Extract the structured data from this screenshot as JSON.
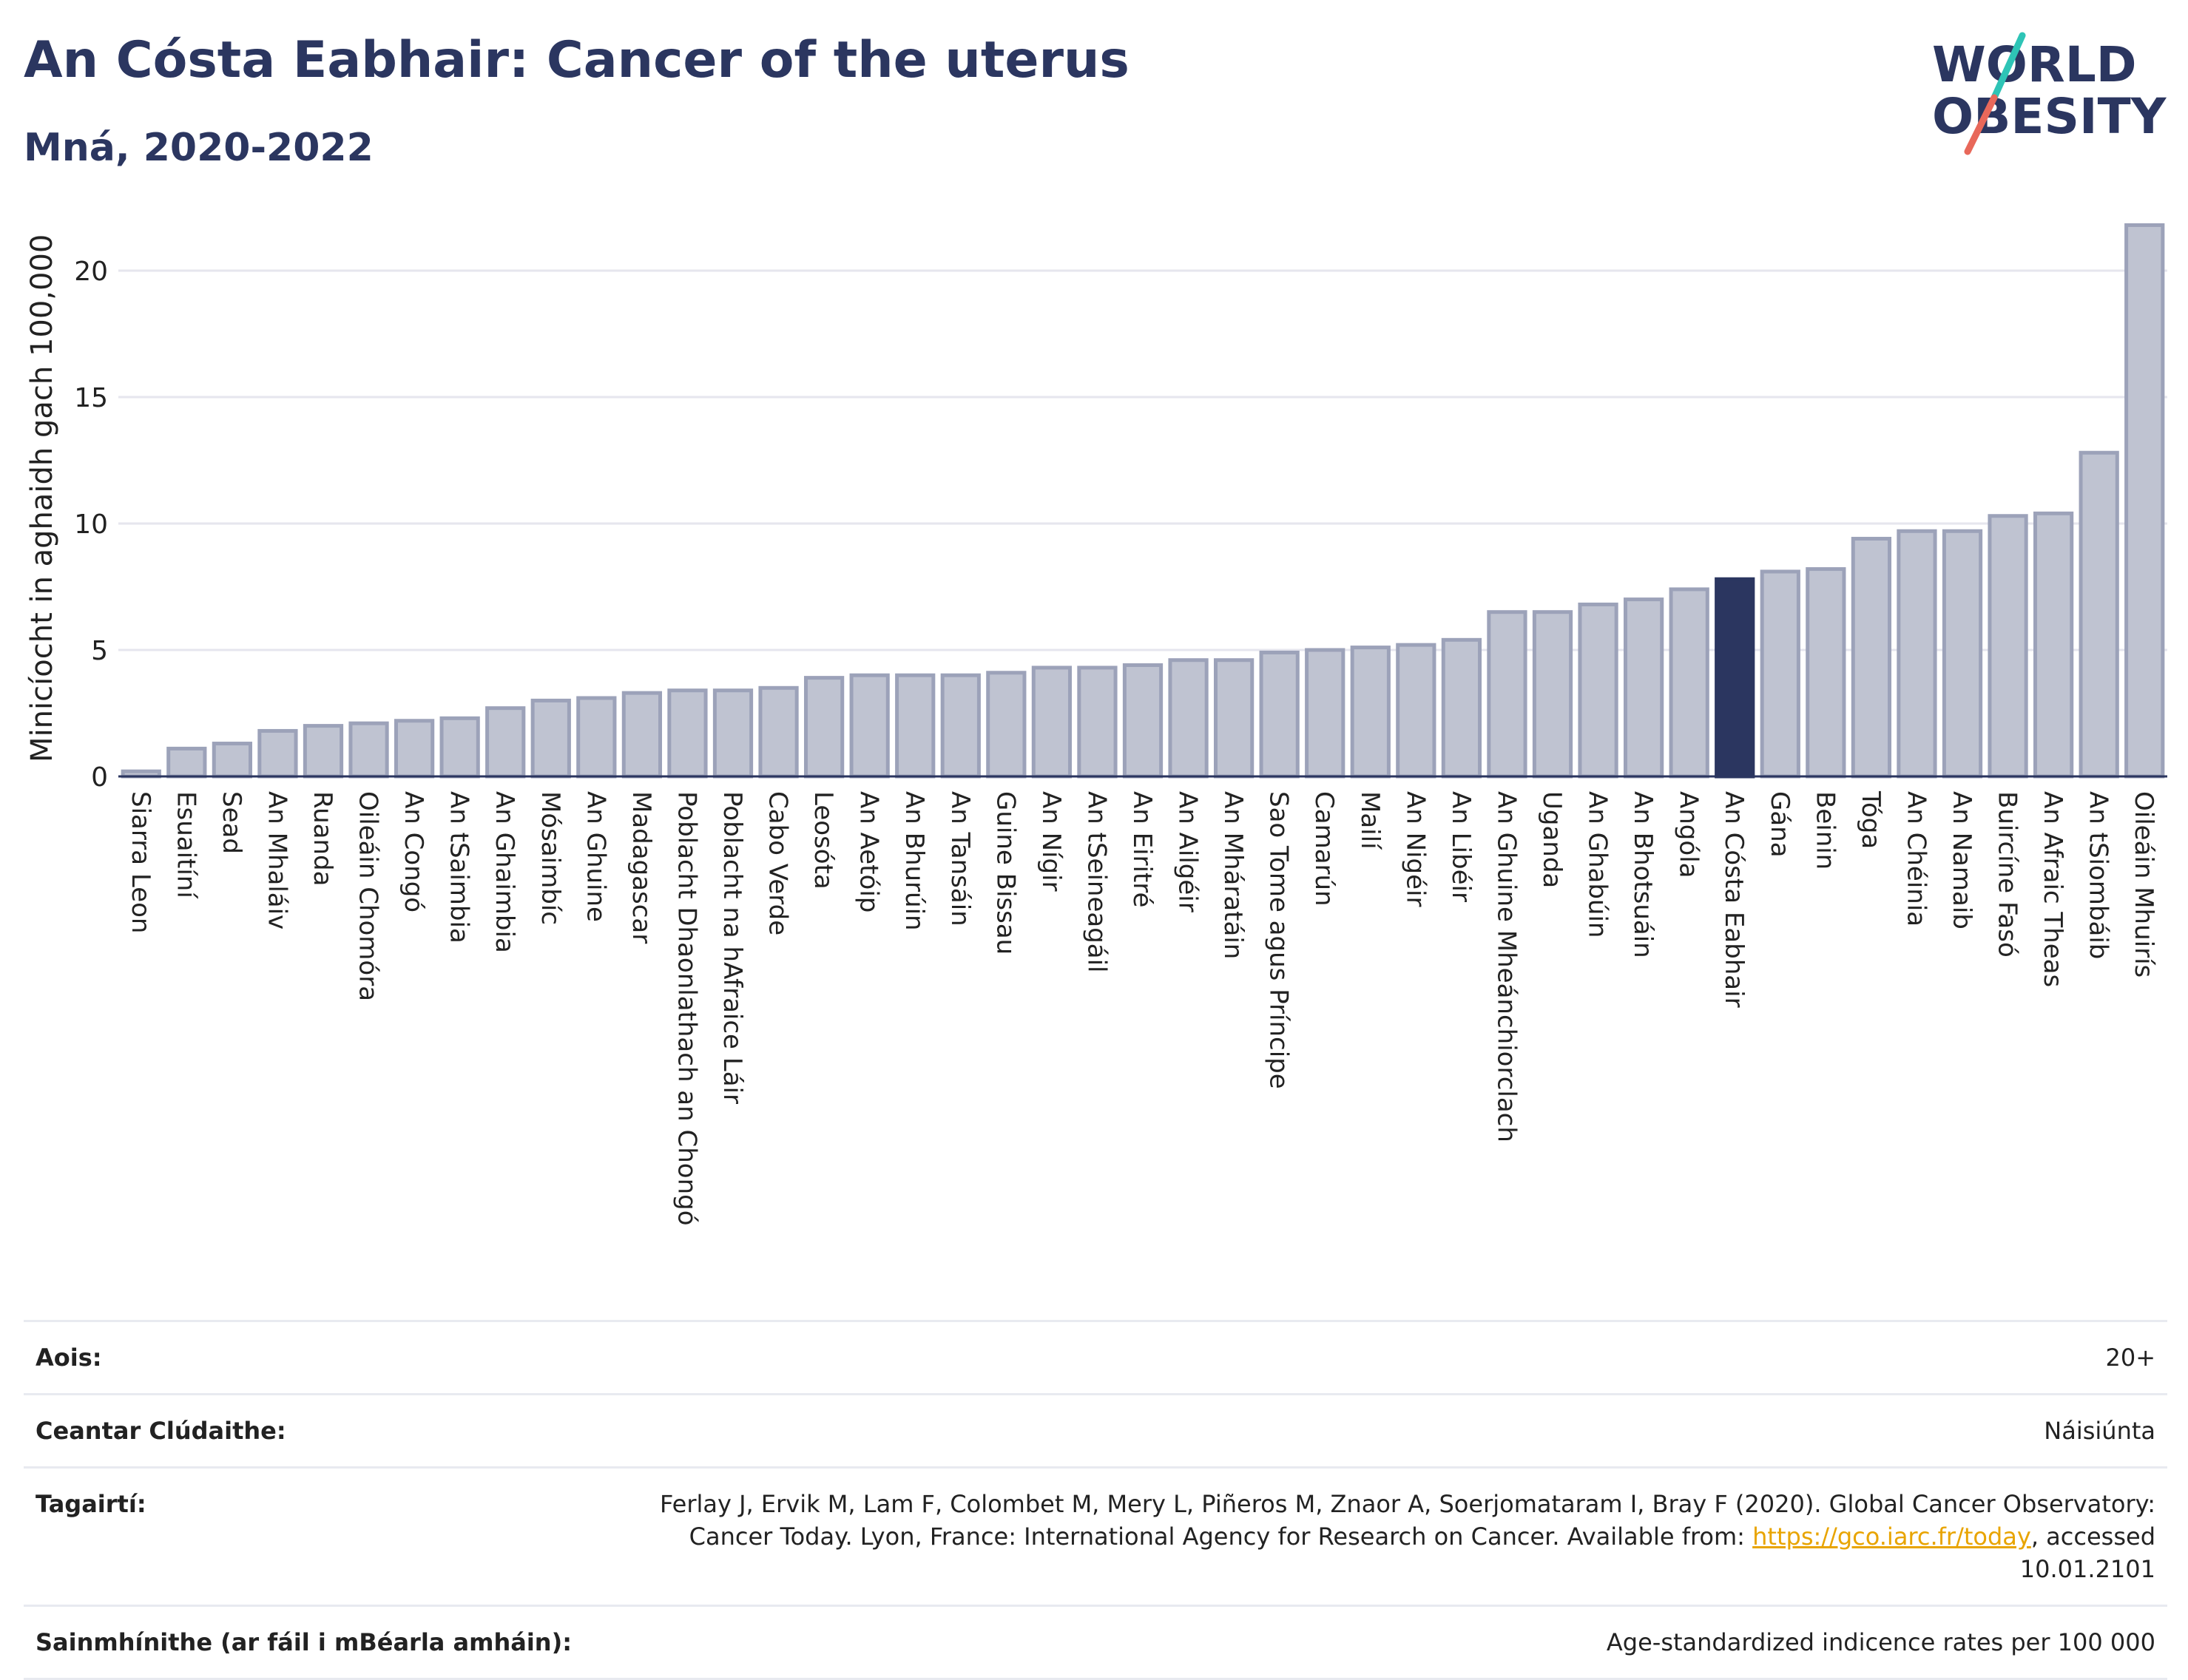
{
  "header": {
    "title": "An Cósta Eabhair: Cancer of the uterus",
    "subtitle": "Mná, 2020-2022"
  },
  "logo": {
    "line1": "WORLD",
    "line2": "OBESITY"
  },
  "colors": {
    "bar": "#bfc3d1",
    "bar_stroke": "#9ca2b9",
    "highlight": "#2b3660",
    "grid": "#e6e6ee",
    "logo_text": "#2b3660",
    "logo_teal": "#2ec4b6",
    "logo_red": "#e8685a"
  },
  "chart_data": {
    "type": "bar",
    "ylabel": "Minicíocht in aghaidh gach 100,000",
    "ylim": [
      0,
      22
    ],
    "yticks": [
      0,
      5,
      10,
      15,
      20
    ],
    "grid": true,
    "highlight": "An Cósta Eabhair",
    "categories": [
      "Siarra Leon",
      "Esuaitíní",
      "Sead",
      "An Mhaláiv",
      "Ruanda",
      "Oileáin Chomóra",
      "An Congó",
      "An tSaimbia",
      "An Ghaimbia",
      "Mósaimbíc",
      "An Ghuine",
      "Madagascar",
      "Poblacht Dhaonlathach an Chongó",
      "Poblacht na hAfraice Láir",
      "Cabo Verde",
      "Leosóta",
      "An Aetóip",
      "An Bhurúin",
      "An Tansáin",
      "Guine Bissau",
      "An Nígir",
      "An tSeineagáil",
      "An Eiritré",
      "An Ailgéir",
      "An Mháratáin",
      "Sao Tome agus Príncipe",
      "Camarún",
      "Mailí",
      "An Nigéir",
      "An Libéir",
      "An Ghuine Mheánchiorclach",
      "Uganda",
      "An Ghabúin",
      "An Bhotsuáin",
      "Angóla",
      "An Cósta Eabhair",
      "Gána",
      "Beinin",
      "Tóga",
      "An Chéinia",
      "An Namaib",
      "Buircíne Fasó",
      "An Afraic Theas",
      "An tSiombáib",
      "Oileáin Mhuirís"
    ],
    "values": [
      0.2,
      1.1,
      1.3,
      1.8,
      2.0,
      2.1,
      2.2,
      2.3,
      2.7,
      3.0,
      3.1,
      3.3,
      3.4,
      3.4,
      3.5,
      3.9,
      4.0,
      4.0,
      4.0,
      4.1,
      4.3,
      4.3,
      4.4,
      4.6,
      4.6,
      4.9,
      5.0,
      5.1,
      5.2,
      5.4,
      6.5,
      6.5,
      6.8,
      7.0,
      7.4,
      7.8,
      8.1,
      8.2,
      9.4,
      9.7,
      9.7,
      10.3,
      10.4,
      12.8,
      21.8
    ]
  },
  "meta": {
    "age_label": "Aois:",
    "age_value": "20+",
    "area_label": "Ceantar Clúdaithe:",
    "area_value": "Náisiúnta",
    "ref_label": "Tagairtí:",
    "ref_text_1": "Ferlay J, Ervik M, Lam F, Colombet M, Mery L, Piñeros M, Znaor A, Soerjomataram I, Bray F (2020). Global Cancer Observatory: Cancer Today. Lyon, France: International Agency for Research on Cancer. Available from: ",
    "ref_link": "https://gco.iarc.fr/today",
    "ref_text_2": ", accessed 10.01.2101",
    "def_label": "Sainmhínithe (ar fáil i mBéarla amháin):",
    "def_value": "Age-standardized indicence rates per 100 000"
  }
}
